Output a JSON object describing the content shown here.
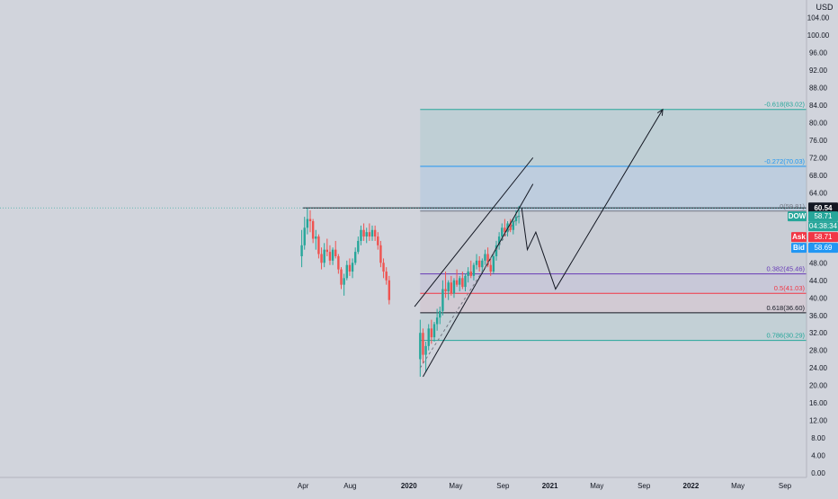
{
  "chart_data": {
    "type": "candlestick",
    "currency": "USD",
    "ylim": [
      -1,
      108
    ],
    "y_ticks": [
      "0.00",
      "4.00",
      "8.00",
      "12.00",
      "16.00",
      "20.00",
      "24.00",
      "28.00",
      "32.00",
      "36.00",
      "40.00",
      "44.00",
      "48.00",
      "52.00",
      "56.00",
      "60.00",
      "64.00",
      "68.00",
      "72.00",
      "76.00",
      "80.00",
      "84.00",
      "88.00",
      "92.00",
      "96.00",
      "100.00",
      "104.00"
    ],
    "y_tick_values": [
      0,
      4,
      8,
      12,
      16,
      20,
      24,
      28,
      32,
      36,
      40,
      44,
      48,
      52,
      56,
      60,
      64,
      68,
      72,
      76,
      80,
      84,
      88,
      92,
      96,
      100,
      104
    ],
    "time_axis": {
      "labels": [
        {
          "text": "Apr",
          "t": 2019.25
        },
        {
          "text": "Aug",
          "t": 2019.583
        },
        {
          "text": "2020",
          "t": 2020.0
        },
        {
          "text": "May",
          "t": 2020.333
        },
        {
          "text": "Sep",
          "t": 2020.667
        },
        {
          "text": "2021",
          "t": 2021.0
        },
        {
          "text": "May",
          "t": 2021.333
        },
        {
          "text": "Sep",
          "t": 2021.667
        },
        {
          "text": "2022",
          "t": 2022.0
        },
        {
          "text": "May",
          "t": 2022.333
        },
        {
          "text": "Sep",
          "t": 2022.667
        }
      ],
      "range": [
        2017.1,
        2022.82
      ]
    },
    "candles": [
      {
        "t": 2019.24,
        "o": 49.5,
        "h": 55.5,
        "l": 47.0,
        "c": 52.0
      },
      {
        "t": 2019.26,
        "o": 52.0,
        "h": 58.5,
        "l": 51.0,
        "c": 56.0
      },
      {
        "t": 2019.28,
        "o": 56.0,
        "h": 60.5,
        "l": 54.5,
        "c": 58.0
      },
      {
        "t": 2019.3,
        "o": 58.0,
        "h": 60.0,
        "l": 55.0,
        "c": 57.5
      },
      {
        "t": 2019.32,
        "o": 57.5,
        "h": 58.0,
        "l": 52.5,
        "c": 53.5
      },
      {
        "t": 2019.34,
        "o": 53.5,
        "h": 55.5,
        "l": 51.0,
        "c": 54.0
      },
      {
        "t": 2019.36,
        "o": 54.0,
        "h": 54.5,
        "l": 49.0,
        "c": 50.0
      },
      {
        "t": 2019.38,
        "o": 50.0,
        "h": 51.5,
        "l": 46.5,
        "c": 48.0
      },
      {
        "t": 2019.4,
        "o": 48.0,
        "h": 52.5,
        "l": 47.0,
        "c": 51.0
      },
      {
        "t": 2019.42,
        "o": 51.0,
        "h": 53.5,
        "l": 49.5,
        "c": 50.5
      },
      {
        "t": 2019.44,
        "o": 50.5,
        "h": 52.0,
        "l": 47.5,
        "c": 48.5
      },
      {
        "t": 2019.46,
        "o": 48.5,
        "h": 51.5,
        "l": 47.5,
        "c": 51.0
      },
      {
        "t": 2019.48,
        "o": 51.0,
        "h": 53.0,
        "l": 49.0,
        "c": 49.5
      },
      {
        "t": 2019.5,
        "o": 49.5,
        "h": 50.0,
        "l": 45.5,
        "c": 46.5
      },
      {
        "t": 2019.52,
        "o": 46.5,
        "h": 47.0,
        "l": 42.0,
        "c": 43.0
      },
      {
        "t": 2019.54,
        "o": 43.0,
        "h": 45.5,
        "l": 40.5,
        "c": 44.5
      },
      {
        "t": 2019.56,
        "o": 44.5,
        "h": 48.5,
        "l": 44.0,
        "c": 47.5
      },
      {
        "t": 2019.58,
        "o": 47.5,
        "h": 49.0,
        "l": 45.0,
        "c": 46.0
      },
      {
        "t": 2019.6,
        "o": 46.0,
        "h": 49.0,
        "l": 44.5,
        "c": 48.0
      },
      {
        "t": 2019.62,
        "o": 48.0,
        "h": 51.5,
        "l": 47.5,
        "c": 50.5
      },
      {
        "t": 2019.64,
        "o": 50.5,
        "h": 54.0,
        "l": 50.0,
        "c": 53.0
      },
      {
        "t": 2019.66,
        "o": 53.0,
        "h": 56.5,
        "l": 52.0,
        "c": 55.5
      },
      {
        "t": 2019.68,
        "o": 55.5,
        "h": 57.0,
        "l": 53.0,
        "c": 54.0
      },
      {
        "t": 2019.7,
        "o": 54.0,
        "h": 56.0,
        "l": 52.5,
        "c": 55.0
      },
      {
        "t": 2019.72,
        "o": 55.0,
        "h": 57.0,
        "l": 53.0,
        "c": 54.0
      },
      {
        "t": 2019.74,
        "o": 54.0,
        "h": 56.5,
        "l": 53.0,
        "c": 55.5
      },
      {
        "t": 2019.76,
        "o": 55.5,
        "h": 56.5,
        "l": 53.0,
        "c": 54.0
      },
      {
        "t": 2019.78,
        "o": 54.0,
        "h": 55.0,
        "l": 51.0,
        "c": 52.0
      },
      {
        "t": 2019.8,
        "o": 52.0,
        "h": 53.0,
        "l": 47.0,
        "c": 48.0
      },
      {
        "t": 2019.82,
        "o": 48.0,
        "h": 49.0,
        "l": 44.5,
        "c": 46.0
      },
      {
        "t": 2019.84,
        "o": 46.0,
        "h": 47.0,
        "l": 43.0,
        "c": 44.0
      },
      {
        "t": 2019.86,
        "o": 44.0,
        "h": 45.0,
        "l": 38.5,
        "c": 39.5
      }
    ],
    "candles_recent": [
      {
        "t": 2020.08,
        "o": 26.0,
        "h": 35.0,
        "l": 22.0,
        "c": 32.0
      },
      {
        "t": 2020.1,
        "o": 32.0,
        "h": 33.0,
        "l": 25.0,
        "c": 27.0
      },
      {
        "t": 2020.12,
        "o": 27.0,
        "h": 30.0,
        "l": 23.0,
        "c": 29.0
      },
      {
        "t": 2020.14,
        "o": 29.0,
        "h": 34.0,
        "l": 28.0,
        "c": 33.0
      },
      {
        "t": 2020.16,
        "o": 33.0,
        "h": 35.0,
        "l": 29.5,
        "c": 31.0
      },
      {
        "t": 2020.18,
        "o": 31.0,
        "h": 34.5,
        "l": 30.0,
        "c": 34.0
      },
      {
        "t": 2020.2,
        "o": 34.0,
        "h": 37.5,
        "l": 32.5,
        "c": 35.5
      },
      {
        "t": 2020.22,
        "o": 35.5,
        "h": 38.0,
        "l": 34.0,
        "c": 37.0
      },
      {
        "t": 2020.24,
        "o": 37.0,
        "h": 44.0,
        "l": 36.0,
        "c": 42.0
      },
      {
        "t": 2020.26,
        "o": 42.0,
        "h": 46.0,
        "l": 40.0,
        "c": 41.5
      },
      {
        "t": 2020.28,
        "o": 41.5,
        "h": 44.0,
        "l": 39.5,
        "c": 43.5
      },
      {
        "t": 2020.3,
        "o": 43.5,
        "h": 45.0,
        "l": 40.5,
        "c": 41.0
      },
      {
        "t": 2020.32,
        "o": 41.0,
        "h": 44.5,
        "l": 40.0,
        "c": 44.0
      },
      {
        "t": 2020.34,
        "o": 44.0,
        "h": 46.5,
        "l": 42.5,
        "c": 43.0
      },
      {
        "t": 2020.36,
        "o": 43.0,
        "h": 45.0,
        "l": 41.5,
        "c": 44.5
      },
      {
        "t": 2020.38,
        "o": 44.5,
        "h": 46.0,
        "l": 42.0,
        "c": 42.5
      },
      {
        "t": 2020.4,
        "o": 42.5,
        "h": 45.5,
        "l": 41.5,
        "c": 45.0
      },
      {
        "t": 2020.42,
        "o": 45.0,
        "h": 47.0,
        "l": 43.5,
        "c": 46.0
      },
      {
        "t": 2020.44,
        "o": 46.0,
        "h": 48.5,
        "l": 44.5,
        "c": 45.0
      },
      {
        "t": 2020.46,
        "o": 45.0,
        "h": 48.0,
        "l": 44.0,
        "c": 47.5
      },
      {
        "t": 2020.48,
        "o": 47.5,
        "h": 50.0,
        "l": 46.5,
        "c": 48.5
      },
      {
        "t": 2020.5,
        "o": 48.5,
        "h": 49.5,
        "l": 46.0,
        "c": 47.0
      },
      {
        "t": 2020.52,
        "o": 47.0,
        "h": 49.0,
        "l": 45.5,
        "c": 48.5
      },
      {
        "t": 2020.54,
        "o": 48.5,
        "h": 51.0,
        "l": 47.5,
        "c": 50.0
      },
      {
        "t": 2020.56,
        "o": 50.0,
        "h": 51.5,
        "l": 47.0,
        "c": 47.5
      },
      {
        "t": 2020.58,
        "o": 47.5,
        "h": 49.0,
        "l": 45.0,
        "c": 46.0
      },
      {
        "t": 2020.6,
        "o": 46.0,
        "h": 50.0,
        "l": 45.5,
        "c": 49.5
      },
      {
        "t": 2020.62,
        "o": 49.5,
        "h": 53.0,
        "l": 48.5,
        "c": 52.0
      },
      {
        "t": 2020.64,
        "o": 52.0,
        "h": 55.0,
        "l": 51.0,
        "c": 54.0
      },
      {
        "t": 2020.66,
        "o": 54.0,
        "h": 57.0,
        "l": 53.0,
        "c": 56.0
      },
      {
        "t": 2020.68,
        "o": 56.0,
        "h": 58.0,
        "l": 54.0,
        "c": 55.0
      },
      {
        "t": 2020.7,
        "o": 55.0,
        "h": 57.5,
        "l": 54.0,
        "c": 57.0
      },
      {
        "t": 2020.72,
        "o": 57.0,
        "h": 58.0,
        "l": 55.0,
        "c": 55.5
      },
      {
        "t": 2020.74,
        "o": 55.5,
        "h": 58.0,
        "l": 54.5,
        "c": 57.5
      },
      {
        "t": 2020.76,
        "o": 57.5,
        "h": 60.0,
        "l": 56.5,
        "c": 58.5
      },
      {
        "t": 2020.78,
        "o": 58.5,
        "h": 61.0,
        "l": 57.0,
        "c": 58.71
      }
    ],
    "fib_levels": [
      {
        "label": "-0.618(83.02)",
        "value": 83.02,
        "color": "#26a69a"
      },
      {
        "label": "-0.272(70.03)",
        "value": 70.03,
        "color": "#2196f3"
      },
      {
        "label": "0(59.81)",
        "value": 59.81,
        "color": "#787b86"
      },
      {
        "label": "0.382(45.46)",
        "value": 45.46,
        "color": "#673ab7"
      },
      {
        "label": "0.5(41.03)",
        "value": 41.03,
        "color": "#f23645"
      },
      {
        "label": "0.618(36.60)",
        "value": 36.6,
        "color": "#131722"
      },
      {
        "label": "0.786(30.29)",
        "value": 30.29,
        "color": "#26a69a"
      }
    ],
    "resistance_line": {
      "value": 60.54,
      "t_start": 2019.25
    },
    "channel": {
      "upper": [
        {
          "t": 2020.04,
          "v": 38.0
        },
        {
          "t": 2020.88,
          "v": 72.0
        }
      ],
      "lower": [
        {
          "t": 2020.1,
          "v": 22.0
        },
        {
          "t": 2020.88,
          "v": 66.0
        }
      ],
      "mid_dashed": [
        {
          "t": 2020.08,
          "v": 24.0
        },
        {
          "t": 2020.78,
          "v": 59.0
        }
      ]
    },
    "projection_path": [
      {
        "t": 2020.8,
        "v": 60.5
      },
      {
        "t": 2020.84,
        "v": 51.0
      },
      {
        "t": 2020.9,
        "v": 55.0
      },
      {
        "t": 2021.04,
        "v": 42.0
      },
      {
        "t": 2021.8,
        "v": 83.0
      }
    ],
    "price_labels": {
      "current": {
        "text": "60.54",
        "value": 60.54,
        "bg": "#131722"
      },
      "symbol": {
        "name": "DOW",
        "price": "58.71",
        "value": 58.71,
        "countdown": "04:38:34",
        "bg": "#26a69a"
      },
      "ask": {
        "name": "Ask",
        "price": "58.71",
        "bg": "#f23645"
      },
      "bid": {
        "name": "Bid",
        "price": "58.69",
        "bg": "#2196f3"
      }
    },
    "colors": {
      "up": "#26a69a",
      "down": "#ef5350",
      "background": "#d1d4dc",
      "grid": "#c6c9d1",
      "text": "#131722"
    }
  }
}
